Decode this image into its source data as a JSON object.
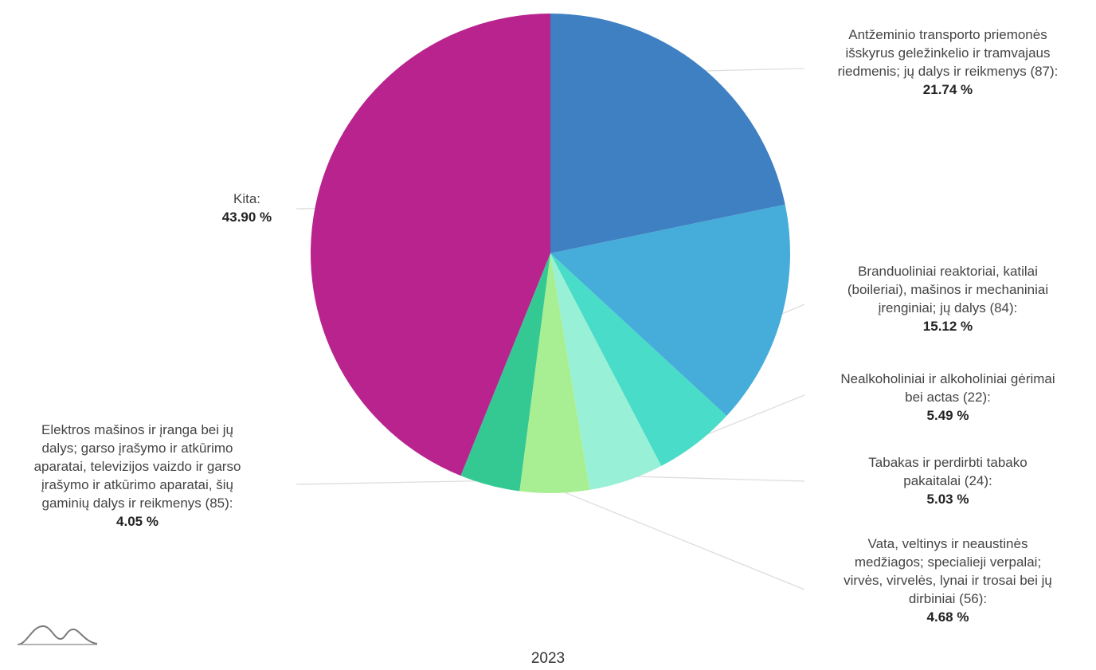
{
  "chart_data": {
    "type": "pie",
    "slices": [
      {
        "label_lines": [
          "Antžeminio transporto priemonės",
          "išskyrus geležinkelio ir tramvajaus",
          "riedmenis; jų dalys ir reikmenys (87):"
        ],
        "value": 21.74,
        "value_text": "21.74 %",
        "color": "#3f80c2"
      },
      {
        "label_lines": [
          "Branduoliniai reaktoriai, katilai",
          "(boileriai), mašinos ir mechaniniai",
          "įrenginiai; jų dalys (84):"
        ],
        "value": 15.12,
        "value_text": "15.12 %",
        "color": "#46acd9"
      },
      {
        "label_lines": [
          "Nealkoholiniai ir alkoholiniai gėrimai",
          "bei actas (22):"
        ],
        "value": 5.49,
        "value_text": "5.49 %",
        "color": "#49dcc8"
      },
      {
        "label_lines": [
          "Tabakas ir perdirbti tabako",
          "pakaitalai (24):"
        ],
        "value": 5.03,
        "value_text": "5.03 %",
        "color": "#98f0d6"
      },
      {
        "label_lines": [
          "Vata, veltinys ir neaustinės",
          "medžiagos; specialieji verpalai;",
          "virvės, virvelės, lynai ir trosai bei jų",
          "dirbiniai (56):"
        ],
        "value": 4.68,
        "value_text": "4.68 %",
        "color": "#a8ef94"
      },
      {
        "label_lines": [
          "Elektros mašinos ir įranga bei jų",
          "dalys; garso įrašymo ir atkūrimo",
          "aparatai, televizijos vaizdo ir garso",
          "įrašymo ir atkūrimo aparatai, šių",
          "gaminių dalys ir reikmenys (85):"
        ],
        "value": 4.05,
        "value_text": "4.05 %",
        "color": "#34c992"
      },
      {
        "label_lines": [
          "Kita:"
        ],
        "value": 43.9,
        "value_text": "43.90 %",
        "color": "#b9238e"
      }
    ],
    "year": "2023",
    "legend": "none",
    "leader_line_color": "#dddddd"
  },
  "logo": {
    "icon": "wave-logo-icon"
  }
}
